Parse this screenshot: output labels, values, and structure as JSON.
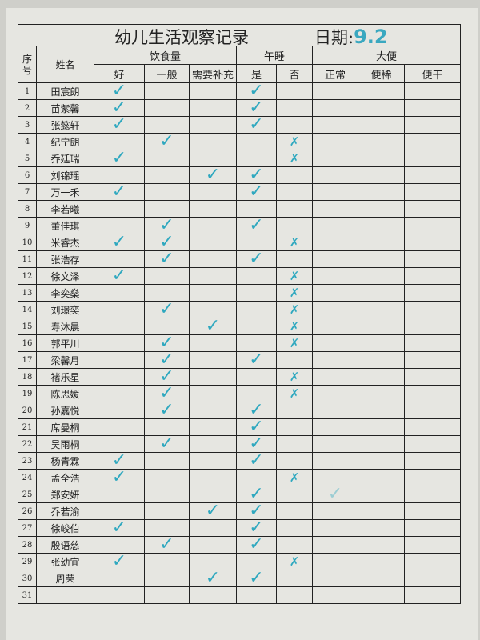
{
  "title": "幼儿生活观察记录",
  "date_label": "日期:",
  "date_value": "9.2",
  "headers": {
    "seq": "序号",
    "name": "姓名",
    "diet": "饮食量",
    "nap": "午睡",
    "bowel": "大便",
    "sub": [
      "好",
      "一般",
      "需要补充",
      "是",
      "否",
      "正常",
      "便稀",
      "便干"
    ]
  },
  "mark_color": "#2fa8bf",
  "mark_legend": {
    "check": "✓",
    "cross": "✗"
  },
  "rows": [
    {
      "n": "1",
      "name": "田宸朗",
      "marks": [
        "check",
        "",
        "",
        "check",
        "",
        "",
        "",
        ""
      ]
    },
    {
      "n": "2",
      "name": "苗紫馨",
      "marks": [
        "check",
        "",
        "",
        "check",
        "",
        "",
        "",
        ""
      ]
    },
    {
      "n": "3",
      "name": "张懿轩",
      "marks": [
        "check",
        "",
        "",
        "check",
        "",
        "",
        "",
        ""
      ]
    },
    {
      "n": "4",
      "name": "纪宁朗",
      "marks": [
        "",
        "check",
        "",
        "",
        "cross",
        "",
        "",
        ""
      ]
    },
    {
      "n": "5",
      "name": "乔廷瑞",
      "marks": [
        "check",
        "",
        "",
        "",
        "cross",
        "",
        "",
        ""
      ]
    },
    {
      "n": "6",
      "name": "刘锦瑶",
      "marks": [
        "",
        "",
        "check",
        "check",
        "",
        "",
        "",
        ""
      ]
    },
    {
      "n": "7",
      "name": "万一禾",
      "marks": [
        "check",
        "",
        "",
        "check",
        "",
        "",
        "",
        ""
      ]
    },
    {
      "n": "8",
      "name": "李若曦",
      "marks": [
        "",
        "",
        "",
        "",
        "",
        "",
        "",
        ""
      ]
    },
    {
      "n": "9",
      "name": "董佳琪",
      "marks": [
        "",
        "check",
        "",
        "check",
        "",
        "",
        "",
        ""
      ]
    },
    {
      "n": "10",
      "name": "米睿杰",
      "marks": [
        "check",
        "check",
        "",
        "",
        "cross",
        "",
        "",
        ""
      ]
    },
    {
      "n": "11",
      "name": "张浩存",
      "marks": [
        "",
        "check",
        "",
        "check",
        "",
        "",
        "",
        ""
      ]
    },
    {
      "n": "12",
      "name": "徐文泽",
      "marks": [
        "check",
        "",
        "",
        "",
        "cross",
        "",
        "",
        ""
      ]
    },
    {
      "n": "13",
      "name": "李奕燊",
      "marks": [
        "",
        "",
        "",
        "",
        "cross",
        "",
        "",
        ""
      ]
    },
    {
      "n": "14",
      "name": "刘璟奕",
      "marks": [
        "",
        "check",
        "",
        "",
        "cross",
        "",
        "",
        ""
      ]
    },
    {
      "n": "15",
      "name": "寿沐晨",
      "marks": [
        "",
        "",
        "check",
        "",
        "cross",
        "",
        "",
        ""
      ]
    },
    {
      "n": "16",
      "name": "郭平川",
      "marks": [
        "",
        "check",
        "",
        "",
        "cross",
        "",
        "",
        ""
      ]
    },
    {
      "n": "17",
      "name": "梁馨月",
      "marks": [
        "",
        "check",
        "",
        "check",
        "",
        "",
        "",
        ""
      ]
    },
    {
      "n": "18",
      "name": "褚乐星",
      "marks": [
        "",
        "check",
        "",
        "",
        "cross",
        "",
        "",
        ""
      ]
    },
    {
      "n": "19",
      "name": "陈思媛",
      "marks": [
        "",
        "check",
        "",
        "",
        "cross",
        "",
        "",
        ""
      ]
    },
    {
      "n": "20",
      "name": "孙嘉悦",
      "marks": [
        "",
        "check",
        "",
        "check",
        "",
        "",
        "",
        ""
      ]
    },
    {
      "n": "21",
      "name": "席曼桐",
      "marks": [
        "",
        "",
        "",
        "check",
        "",
        "",
        "",
        ""
      ]
    },
    {
      "n": "22",
      "name": "吴雨桐",
      "marks": [
        "",
        "check",
        "",
        "check",
        "",
        "",
        "",
        ""
      ]
    },
    {
      "n": "23",
      "name": "杨青霖",
      "marks": [
        "check",
        "",
        "",
        "check",
        "",
        "",
        "",
        ""
      ]
    },
    {
      "n": "24",
      "name": "孟全浩",
      "marks": [
        "check",
        "",
        "",
        "",
        "cross",
        "",
        "",
        ""
      ]
    },
    {
      "n": "25",
      "name": "郑安妍",
      "marks": [
        "",
        "",
        "",
        "check",
        "",
        "check",
        "",
        ""
      ]
    },
    {
      "n": "26",
      "name": "乔若渝",
      "marks": [
        "",
        "",
        "check",
        "check",
        "",
        "",
        "",
        ""
      ]
    },
    {
      "n": "27",
      "name": "徐峻伯",
      "marks": [
        "check",
        "",
        "",
        "check",
        "",
        "",
        "",
        ""
      ]
    },
    {
      "n": "28",
      "name": "殷语慈",
      "marks": [
        "",
        "check",
        "",
        "check",
        "",
        "",
        "",
        ""
      ]
    },
    {
      "n": "29",
      "name": "张幼宜",
      "marks": [
        "check",
        "",
        "",
        "",
        "cross",
        "",
        "",
        ""
      ]
    },
    {
      "n": "30",
      "name": "周荣",
      "marks": [
        "",
        "",
        "check",
        "check",
        "",
        "",
        "",
        ""
      ]
    },
    {
      "n": "31",
      "name": "",
      "marks": [
        "",
        "",
        "",
        "",
        "",
        "",
        "",
        ""
      ]
    }
  ]
}
